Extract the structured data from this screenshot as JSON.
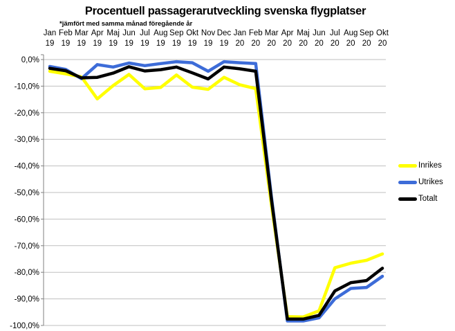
{
  "title": "Procentuell passagerarutveckling svenska flygplatser",
  "subtitle": "*jämfört med samma månad föregående år",
  "legend": {
    "items": [
      {
        "label": "Inrikes",
        "color": "#FFFF00"
      },
      {
        "label": "Utrikes",
        "color": "#3D6CD8"
      },
      {
        "label": "Totalt",
        "color": "#000000"
      }
    ]
  },
  "colors": {
    "grid": "#BFBFBF",
    "axis": "#808080",
    "background": "#FFFFFF",
    "text": "#000000"
  },
  "chart_data": {
    "type": "line",
    "title": "Procentuell passagerarutveckling svenska flygplatser",
    "subtitle": "*jämfört med samma månad föregående år",
    "categories": [
      "Jan",
      "Feb",
      "Mar",
      "Apr",
      "Maj",
      "Jun",
      "Jul",
      "Aug",
      "Sep",
      "Okt",
      "Nov",
      "Dec",
      "Jan",
      "Feb",
      "Mar",
      "Apr",
      "Maj",
      "Jun",
      "Jul",
      "Aug",
      "Sep",
      "Okt"
    ],
    "category_years": [
      "19",
      "19",
      "19",
      "19",
      "19",
      "19",
      "19",
      "19",
      "19",
      "19",
      "19",
      "19",
      "20",
      "20",
      "20",
      "20",
      "20",
      "20",
      "20",
      "20",
      "20",
      "20"
    ],
    "series": [
      {
        "name": "Inrikes",
        "color": "#FFFF00",
        "values": [
          -4.4,
          -5.4,
          -6.5,
          -14.8,
          -9.8,
          -5.6,
          -11.0,
          -10.5,
          -5.8,
          -10.4,
          -11.2,
          -6.7,
          -9.5,
          -10.9,
          -55,
          -96.7,
          -96.8,
          -94.5,
          -78.3,
          -76.6,
          -75.5,
          -73.1
        ]
      },
      {
        "name": "Utrikes",
        "color": "#3D6CD8",
        "values": [
          -2.6,
          -3.7,
          -7.2,
          -1.9,
          -2.8,
          -1.3,
          -2.3,
          -1.5,
          -0.8,
          -1.2,
          -4.4,
          -0.8,
          -1.2,
          -1.5,
          -52,
          -98.3,
          -98.3,
          -97.1,
          -90.0,
          -86.1,
          -85.7,
          -81.5
        ]
      },
      {
        "name": "Totalt",
        "color": "#000000",
        "values": [
          -3.3,
          -4.2,
          -6.9,
          -6.7,
          -5.1,
          -2.7,
          -4.3,
          -3.8,
          -2.8,
          -5.0,
          -7.3,
          -2.8,
          -3.5,
          -4.4,
          -53,
          -97.6,
          -97.6,
          -96.2,
          -87.0,
          -83.9,
          -83.1,
          -78.5
        ]
      }
    ],
    "ylim": [
      -100,
      0
    ],
    "ytick_step": 10,
    "ytick_labels": [
      "0,0%",
      "-10,0%",
      "-20,0%",
      "-30,0%",
      "-40,0%",
      "-50,0%",
      "-60,0%",
      "-70,0%",
      "-80,0%",
      "-90,0%",
      "-100,0%"
    ],
    "xlabel": "",
    "ylabel": "",
    "grid": true,
    "x_axis_position": "top",
    "legend_position": "right"
  }
}
